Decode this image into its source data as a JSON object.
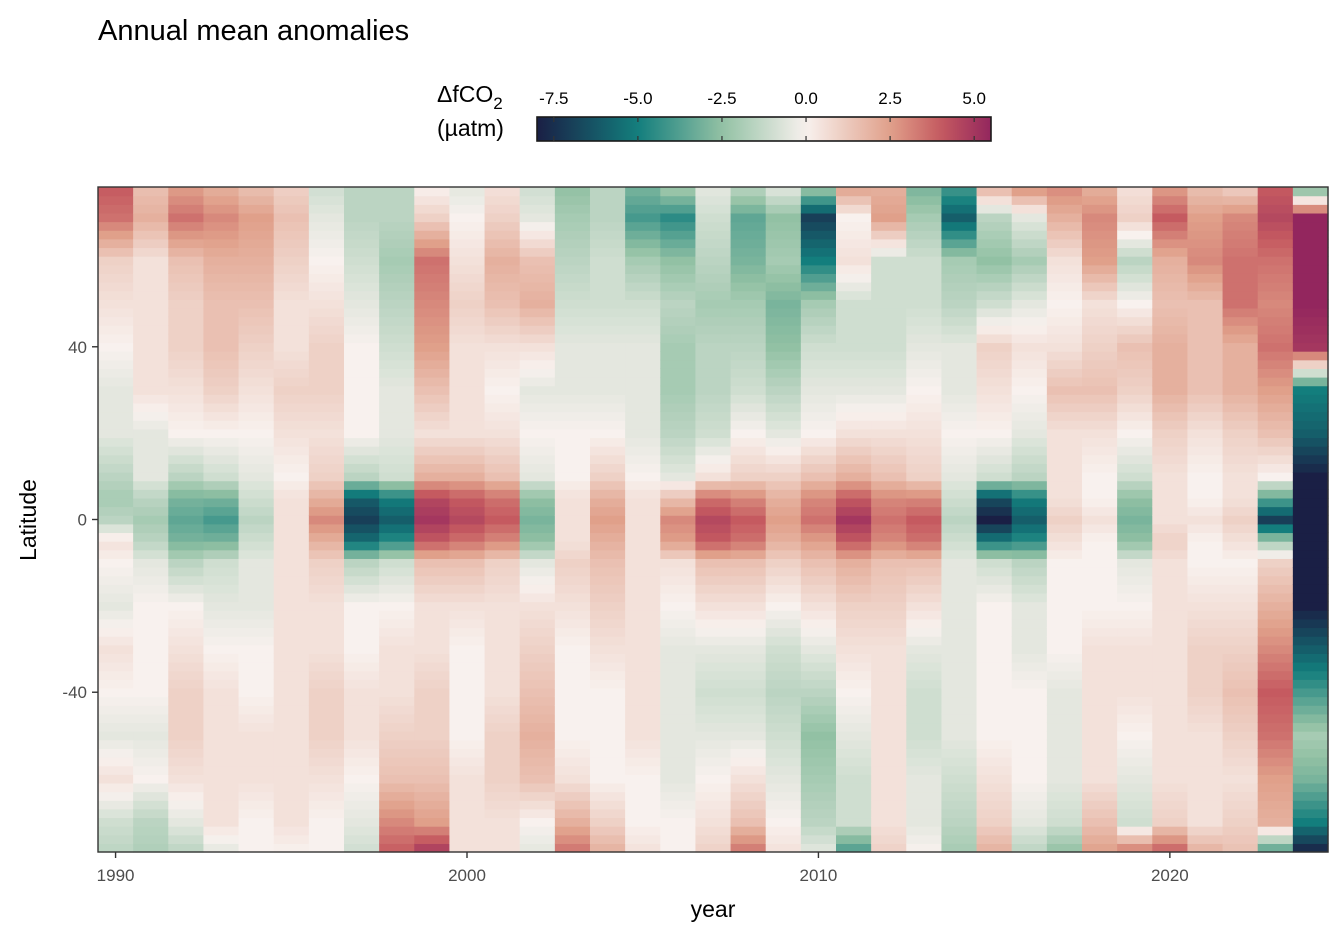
{
  "chart_data": {
    "type": "heatmap",
    "title": "Annual mean anomalies",
    "xlabel": "year",
    "ylabel": "Latitude",
    "xlim": [
      1989.5,
      2024.5
    ],
    "ylim": [
      -77,
      77
    ],
    "x_ticks": [
      1990,
      2000,
      2010,
      2020
    ],
    "y_ticks": [
      -40,
      0,
      40
    ],
    "x_tick_labels": [
      "1990",
      "2000",
      "2010",
      "2020"
    ],
    "y_tick_labels": [
      "-40",
      "0",
      "40"
    ],
    "legend": {
      "title_main": "ΔfCO",
      "title_sub": "2",
      "title_unit": "(µatm)",
      "position": "top",
      "range": [
        -8,
        5.5
      ],
      "breaks": [
        -7.5,
        -5.0,
        -2.5,
        0.0,
        2.5,
        5.0
      ],
      "break_labels": [
        "-7.5",
        "-5.0",
        "-2.5",
        "0.0",
        "2.5",
        "5.0"
      ],
      "colors": [
        "#1a1f45",
        "#137e7d",
        "#92c1a4",
        "#f8f1ee",
        "#e0a08a",
        "#c55a60",
        "#93265e"
      ],
      "color_stops": [
        -8,
        -5,
        -2.5,
        0,
        2.5,
        4,
        5.5
      ]
    },
    "grid": false,
    "years": [
      1990,
      1991,
      1992,
      1993,
      1994,
      1995,
      1996,
      1997,
      1998,
      1999,
      2000,
      2001,
      2002,
      2003,
      2004,
      2005,
      2006,
      2007,
      2008,
      2009,
      2010,
      2011,
      2012,
      2013,
      2014,
      2015,
      2016,
      2017,
      2018,
      2019,
      2020,
      2021,
      2022,
      2023,
      2024
    ],
    "lat_bands": [
      -77,
      -70,
      -60,
      -50,
      -40,
      -30,
      -20,
      -10,
      -5,
      0,
      5,
      10,
      20,
      30,
      40,
      50,
      60,
      70,
      77
    ],
    "anomalies": [
      [
        -1.5,
        -1.0,
        0.5,
        -0.5,
        0.0,
        0.5,
        -0.5,
        0.0,
        0.5,
        -1.5,
        -2.0,
        -1.5,
        -0.5,
        -0.5,
        0.0,
        0.5,
        1.0,
        3.5,
        4.0
      ],
      [
        -1.8,
        -1.5,
        0.0,
        -0.5,
        0.0,
        0.0,
        0.0,
        -0.5,
        -1.5,
        -2.0,
        -1.5,
        -0.5,
        -0.5,
        0.5,
        0.5,
        0.5,
        0.5,
        2.0,
        1.5
      ],
      [
        -1.5,
        -0.5,
        0.5,
        1.0,
        1.0,
        0.5,
        0.0,
        -1.5,
        -3.0,
        -3.5,
        -3.0,
        -1.5,
        0.0,
        0.5,
        1.0,
        1.0,
        1.5,
        3.5,
        2.5
      ],
      [
        -0.5,
        0.5,
        0.5,
        0.5,
        0.5,
        0.0,
        -0.5,
        -1.0,
        -3.0,
        -4.0,
        -3.0,
        -1.0,
        0.0,
        1.0,
        1.5,
        1.5,
        2.0,
        3.0,
        2.0
      ],
      [
        0.0,
        0.0,
        0.5,
        0.5,
        0.0,
        0.0,
        -0.5,
        -0.5,
        -1.0,
        -1.5,
        -1.0,
        -0.5,
        0.0,
        0.5,
        1.0,
        1.5,
        2.0,
        2.5,
        1.5
      ],
      [
        0.0,
        0.5,
        0.5,
        0.5,
        0.5,
        0.5,
        0.5,
        0.5,
        0.5,
        0.5,
        0.5,
        0.0,
        0.5,
        1.0,
        0.5,
        0.5,
        1.0,
        1.5,
        1.0
      ],
      [
        0.0,
        0.0,
        0.5,
        1.0,
        1.0,
        0.5,
        0.5,
        1.0,
        2.0,
        3.0,
        2.0,
        1.0,
        0.5,
        1.0,
        1.0,
        0.5,
        0.0,
        -0.5,
        -1.0
      ],
      [
        -1.0,
        -0.5,
        0.0,
        0.5,
        0.5,
        0.0,
        0.0,
        -1.5,
        -5.5,
        -7.0,
        -6.0,
        -1.5,
        0.0,
        0.0,
        0.0,
        -0.5,
        -1.0,
        -1.5,
        -1.5
      ],
      [
        4.0,
        3.0,
        1.5,
        1.0,
        0.5,
        0.5,
        0.0,
        -1.0,
        -4.5,
        -6.0,
        -5.0,
        -1.0,
        -0.5,
        -0.5,
        -1.0,
        -1.5,
        -2.0,
        -1.5,
        -1.5
      ],
      [
        5.0,
        2.5,
        1.5,
        1.0,
        1.0,
        0.5,
        0.5,
        1.5,
        4.0,
        5.0,
        4.5,
        2.0,
        0.5,
        1.5,
        2.5,
        3.0,
        3.5,
        1.0,
        0.0
      ],
      [
        0.5,
        0.5,
        0.5,
        0.0,
        0.0,
        0.0,
        0.5,
        1.5,
        3.5,
        4.5,
        4.0,
        2.0,
        0.5,
        0.5,
        0.5,
        1.0,
        0.5,
        0.0,
        -0.5
      ],
      [
        0.5,
        0.5,
        1.0,
        1.0,
        0.5,
        0.5,
        0.5,
        1.0,
        3.0,
        4.0,
        3.5,
        1.5,
        0.5,
        0.0,
        0.5,
        1.5,
        2.0,
        1.0,
        0.5
      ],
      [
        -0.5,
        0.0,
        1.5,
        2.0,
        1.5,
        1.0,
        0.5,
        -0.5,
        -2.5,
        -3.0,
        -2.5,
        -0.5,
        0.0,
        -0.5,
        0.5,
        2.0,
        1.5,
        -0.5,
        -1.0
      ],
      [
        3.5,
        2.0,
        0.5,
        0.0,
        0.0,
        0.0,
        0.5,
        1.0,
        0.5,
        0.5,
        0.5,
        0.0,
        0.0,
        -0.5,
        -0.5,
        -1.0,
        -1.5,
        -2.0,
        -2.5
      ],
      [
        2.0,
        1.0,
        0.0,
        0.0,
        0.0,
        0.5,
        1.0,
        1.5,
        2.0,
        2.5,
        2.0,
        1.0,
        0.0,
        -0.5,
        -0.5,
        -1.0,
        -1.0,
        -1.5,
        -1.5
      ],
      [
        0.5,
        0.0,
        0.0,
        0.5,
        0.5,
        0.5,
        0.5,
        0.5,
        0.5,
        0.5,
        0.5,
        0.0,
        -0.5,
        -0.5,
        -0.5,
        -1.0,
        -2.0,
        -4.0,
        -3.0
      ],
      [
        0.0,
        0.0,
        -0.5,
        -0.5,
        -0.5,
        -0.5,
        0.0,
        0.5,
        2.5,
        3.0,
        1.5,
        -0.5,
        -1.5,
        -2.0,
        -2.0,
        -1.5,
        -2.5,
        -4.5,
        -2.0
      ],
      [
        1.0,
        0.5,
        0.0,
        -0.5,
        -1.0,
        -0.5,
        0.5,
        1.5,
        4.0,
        4.5,
        3.5,
        0.5,
        -1.0,
        -1.5,
        -1.5,
        -2.0,
        -1.5,
        -1.0,
        -0.5
      ],
      [
        3.5,
        1.5,
        0.5,
        -0.5,
        -1.0,
        -0.5,
        0.5,
        1.5,
        3.5,
        4.0,
        3.0,
        1.0,
        0.0,
        -1.0,
        -1.5,
        -2.0,
        -3.0,
        -3.5,
        -1.5
      ],
      [
        0.5,
        0.0,
        -0.5,
        -1.0,
        -1.5,
        -1.0,
        0.0,
        1.0,
        2.0,
        2.5,
        2.0,
        1.0,
        -0.5,
        -1.5,
        -2.5,
        -3.0,
        -2.0,
        -2.5,
        -0.5
      ],
      [
        -0.5,
        -1.5,
        -2.0,
        -2.5,
        -1.5,
        -0.5,
        0.5,
        1.5,
        2.5,
        3.5,
        3.0,
        1.5,
        0.0,
        -0.5,
        -1.0,
        -2.0,
        -5.0,
        -7.0,
        -2.0
      ],
      [
        -4.0,
        -1.0,
        -1.0,
        -0.5,
        0.0,
        0.5,
        1.0,
        2.0,
        4.0,
        5.0,
        4.0,
        2.0,
        0.5,
        -0.5,
        -1.0,
        -1.0,
        0.5,
        0.0,
        2.5
      ],
      [
        1.0,
        0.5,
        0.5,
        0.5,
        0.5,
        0.5,
        1.0,
        1.5,
        3.0,
        3.5,
        3.0,
        1.5,
        0.5,
        -0.5,
        -1.0,
        -1.0,
        -1.0,
        2.5,
        2.0
      ],
      [
        0.0,
        -0.5,
        -0.5,
        -1.0,
        -1.0,
        -0.5,
        0.5,
        1.5,
        3.5,
        4.0,
        3.0,
        1.0,
        0.5,
        0.0,
        -0.5,
        -1.0,
        -1.0,
        -2.0,
        -3.0
      ],
      [
        -2.0,
        -1.5,
        -1.0,
        -0.5,
        -0.5,
        -0.5,
        -0.5,
        -0.5,
        -1.0,
        -1.5,
        -1.0,
        -0.5,
        0.0,
        -0.5,
        -0.5,
        -1.5,
        -2.0,
        -6.0,
        -4.0
      ],
      [
        2.0,
        1.0,
        0.5,
        0.0,
        0.0,
        0.0,
        0.0,
        -1.0,
        -5.0,
        -8.0,
        -6.5,
        -1.0,
        0.0,
        0.5,
        1.0,
        -1.0,
        -2.5,
        -1.5,
        2.0
      ],
      [
        -1.5,
        -0.5,
        0.0,
        0.0,
        0.0,
        -0.5,
        -0.5,
        -1.5,
        -4.5,
        -6.0,
        -5.0,
        -1.5,
        -0.5,
        0.0,
        0.5,
        -0.5,
        -2.0,
        -0.5,
        3.0
      ],
      [
        -2.5,
        -1.0,
        -0.5,
        -0.5,
        -0.5,
        0.0,
        0.0,
        0.0,
        0.5,
        1.0,
        0.5,
        0.5,
        0.5,
        1.5,
        0.5,
        0.0,
        0.5,
        2.0,
        3.0
      ],
      [
        2.5,
        1.5,
        0.5,
        0.5,
        0.5,
        0.5,
        0.0,
        0.0,
        0.0,
        0.5,
        0.0,
        0.0,
        0.5,
        1.5,
        1.0,
        0.5,
        2.5,
        3.0,
        2.0
      ],
      [
        3.5,
        -1.0,
        -0.5,
        0.0,
        0.5,
        0.5,
        0.0,
        -0.5,
        -2.5,
        -3.0,
        -2.5,
        -1.0,
        0.0,
        1.0,
        1.5,
        0.0,
        -1.5,
        1.0,
        0.5
      ],
      [
        4.0,
        1.0,
        0.5,
        0.5,
        0.5,
        0.5,
        0.5,
        0.5,
        1.0,
        0.5,
        0.5,
        0.5,
        1.0,
        2.0,
        2.0,
        1.5,
        2.0,
        4.0,
        2.5
      ],
      [
        2.0,
        0.5,
        0.5,
        0.5,
        1.0,
        1.0,
        0.5,
        0.0,
        0.0,
        0.5,
        0.0,
        0.0,
        0.5,
        1.5,
        1.5,
        1.5,
        3.0,
        2.5,
        1.5
      ],
      [
        1.5,
        1.0,
        0.5,
        1.0,
        1.5,
        1.0,
        0.5,
        0.0,
        0.5,
        1.0,
        0.5,
        0.5,
        1.0,
        2.0,
        2.0,
        3.5,
        3.5,
        3.0,
        1.0
      ],
      [
        -4.0,
        2.0,
        2.5,
        3.5,
        4.0,
        3.0,
        2.0,
        1.0,
        -2.0,
        -7.0,
        -3.5,
        0.0,
        1.5,
        2.5,
        3.5,
        3.0,
        3.5,
        4.5,
        4.0
      ],
      [
        -8.0,
        -5.0,
        -3.0,
        -2.0,
        -4.0,
        -6.0,
        -8.0,
        -8.0,
        -8.0,
        -8.0,
        -8.0,
        -8.0,
        -6.0,
        -5.0,
        5.0,
        5.5,
        5.5,
        5.5,
        -3.5
      ]
    ]
  }
}
